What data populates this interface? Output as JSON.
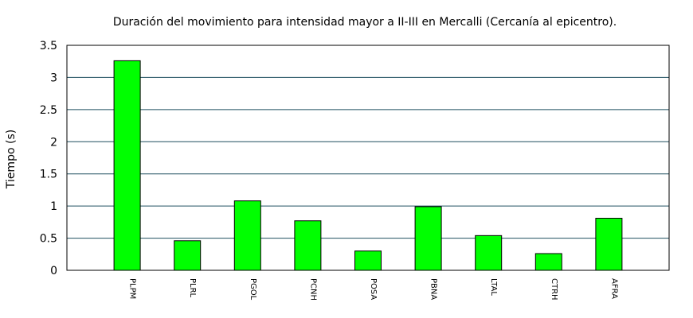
{
  "chart_data": {
    "type": "bar",
    "title": "Duración del movimiento para intensidad mayor a II-III en Mercalli (Cercanía al epicentro).",
    "xlabel": "",
    "ylabel": "Tiempo (s)",
    "categories": [
      "PLPM",
      "PLRL",
      "PGOL",
      "PCNH",
      "POSA",
      "PBNA",
      "LTAL",
      "CTRH",
      "AFRA"
    ],
    "values": [
      3.26,
      0.46,
      1.08,
      0.77,
      0.3,
      0.99,
      0.54,
      0.26,
      0.81
    ],
    "ylim": [
      0,
      3.5
    ],
    "yticks": [
      "0",
      "0.5",
      "1",
      "1.5",
      "2",
      "2.5",
      "3",
      "3.5"
    ],
    "grid": true,
    "legend": "none",
    "colors": {
      "bar": "#00ff00",
      "bar_stroke": "#000000",
      "grid": "#1f4f5f"
    }
  }
}
